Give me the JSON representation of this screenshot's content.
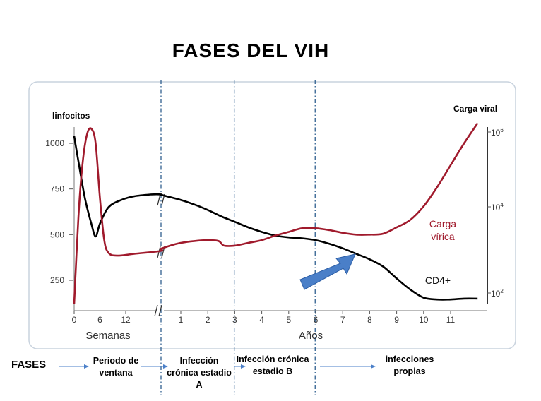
{
  "title": "FASES DEL VIH",
  "fases_label": "FASES",
  "phases": [
    {
      "label": "Periodo de ventana"
    },
    {
      "label": "Infección crónica estadio A"
    },
    {
      "label": "Infección crónica estadio B"
    },
    {
      "label": "infecciones propias"
    }
  ],
  "chart_data": {
    "type": "line",
    "left_axis": {
      "label": "linfocitos",
      "ticks": [
        "1000",
        "750",
        "500",
        "250"
      ],
      "values": [
        1000,
        750,
        500,
        250
      ],
      "ylim": [
        0,
        1100
      ]
    },
    "right_axis": {
      "label": "Carga viral",
      "ticks": [
        {
          "base": "10",
          "exp": "6",
          "value": 1000000
        },
        {
          "base": "10",
          "exp": "4",
          "value": 10000
        },
        {
          "base": "10",
          "exp": "2",
          "value": 100
        }
      ],
      "scale": "log"
    },
    "x_segments": [
      {
        "label": "Semanas",
        "ticks": [
          "0",
          "6",
          "12"
        ],
        "values": [
          0,
          6,
          12
        ]
      },
      {
        "label": "Años",
        "ticks": [
          "1",
          "2",
          "3",
          "4",
          "5",
          "6",
          "7",
          "8",
          "9",
          "10",
          "11"
        ],
        "values": [
          1,
          2,
          3,
          4,
          5,
          6,
          7,
          8,
          9,
          10,
          11
        ]
      }
    ],
    "phase_boundaries_years": [
      0,
      2.98,
      5.98
    ],
    "series": [
      {
        "name": "CD4+",
        "color": "#000000",
        "weeks": [
          [
            0,
            1040
          ],
          [
            1,
            900
          ],
          [
            2.5,
            700
          ],
          [
            4,
            560
          ],
          [
            5,
            490
          ],
          [
            6,
            560
          ],
          [
            8,
            650
          ],
          [
            11,
            690
          ],
          [
            14,
            710
          ],
          [
            18,
            720
          ],
          [
            22,
            720
          ],
          [
            26,
            715
          ]
        ],
        "years": [
          [
            0,
            720
          ],
          [
            0.5,
            705
          ],
          [
            1,
            690
          ],
          [
            1.5,
            665
          ],
          [
            2,
            635
          ],
          [
            2.5,
            600
          ],
          [
            3,
            570
          ],
          [
            3.5,
            540
          ],
          [
            4,
            515
          ],
          [
            4.5,
            495
          ],
          [
            5,
            485
          ],
          [
            5.5,
            480
          ],
          [
            6,
            470
          ],
          [
            6.5,
            450
          ],
          [
            7,
            425
          ],
          [
            7.5,
            395
          ],
          [
            8,
            365
          ],
          [
            8.5,
            325
          ],
          [
            9,
            260
          ],
          [
            9.5,
            200
          ],
          [
            10,
            155
          ],
          [
            10.5,
            145
          ],
          [
            11,
            145
          ],
          [
            11.5,
            150
          ],
          [
            12,
            150
          ]
        ]
      },
      {
        "name": "Carga vírica",
        "name_lines": [
          "Carga",
          "vírica"
        ],
        "color": "#a01a2c",
        "weeks": [
          [
            0,
            120
          ],
          [
            1,
            600
          ],
          [
            2,
            900
          ],
          [
            3,
            1050
          ],
          [
            4,
            1080
          ],
          [
            5,
            1000
          ],
          [
            6,
            700
          ],
          [
            7,
            470
          ],
          [
            8,
            400
          ],
          [
            10,
            385
          ],
          [
            14,
            395
          ],
          [
            20,
            410
          ],
          [
            26,
            420
          ]
        ],
        "years": [
          [
            0,
            420
          ],
          [
            0.5,
            440
          ],
          [
            1,
            455
          ],
          [
            1.5,
            465
          ],
          [
            2,
            470
          ],
          [
            2.4,
            465
          ],
          [
            2.6,
            440
          ],
          [
            3,
            440
          ],
          [
            3.5,
            455
          ],
          [
            4,
            470
          ],
          [
            4.5,
            495
          ],
          [
            5,
            515
          ],
          [
            5.5,
            535
          ],
          [
            6,
            535
          ],
          [
            6.5,
            525
          ],
          [
            7,
            510
          ],
          [
            7.5,
            500
          ],
          [
            8,
            500
          ],
          [
            8.5,
            505
          ],
          [
            9,
            540
          ],
          [
            9.5,
            580
          ],
          [
            10,
            655
          ],
          [
            10.5,
            760
          ],
          [
            11,
            880
          ],
          [
            11.5,
            1000
          ],
          [
            12,
            1110
          ]
        ]
      }
    ]
  }
}
